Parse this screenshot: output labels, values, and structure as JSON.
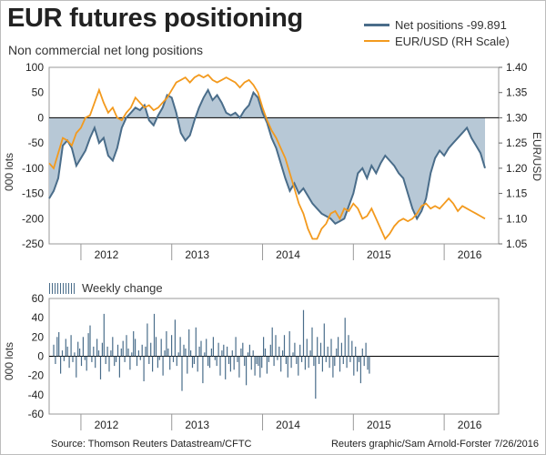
{
  "header": {
    "title": "EUR futures positioning",
    "subtitle": "Non commercial net long positions"
  },
  "legend": {
    "net_positions": "Net positions -99.891",
    "eurusd": "EUR/USD (RH Scale)",
    "weekly": "Weekly change"
  },
  "axes": {
    "top_left_label": "000 lots",
    "top_right_label": "EUR/USD",
    "bottom_left_label": "000 lots"
  },
  "footer": {
    "source": "Source: Thomson Reuters Datastream/CFTC",
    "credit": "Reuters graphic/Sam Arnold-Forster 7/26/2016"
  },
  "colors": {
    "net_line": "#4a6d8a",
    "net_fill": "#b7c8d6",
    "eurusd_line": "#f39a1e",
    "weekly_bar": "#4a6d8a"
  },
  "chart_data": [
    {
      "type": "area",
      "title": "EUR futures positioning",
      "subtitle": "Non commercial net long positions",
      "ylabel": "000 lots",
      "y2label": "EUR/USD",
      "xlim": [
        2011.65,
        2016.6
      ],
      "ylim": [
        -250,
        100
      ],
      "y2lim": [
        1.05,
        1.4
      ],
      "yticks": [
        100,
        50,
        0,
        -50,
        -100,
        -150,
        -200,
        -250
      ],
      "y2ticks": [
        "1.40",
        "1.35",
        "1.30",
        "1.25",
        "1.20",
        "1.15",
        "1.10",
        "1.05"
      ],
      "xticks": [
        {
          "label": "2012",
          "x": 2012.0
        },
        {
          "label": "2013",
          "x": 2013.0
        },
        {
          "label": "2014",
          "x": 2014.0
        },
        {
          "label": "2015",
          "x": 2015.0
        },
        {
          "label": "2016",
          "x": 2016.0
        }
      ],
      "series": [
        {
          "name": "Net positions -99.891",
          "axis": "left",
          "points": [
            [
              2011.65,
              -160
            ],
            [
              2011.7,
              -145
            ],
            [
              2011.75,
              -120
            ],
            [
              2011.8,
              -55
            ],
            [
              2011.85,
              -45
            ],
            [
              2011.9,
              -60
            ],
            [
              2011.95,
              -95
            ],
            [
              2012.0,
              -80
            ],
            [
              2012.05,
              -65
            ],
            [
              2012.1,
              -40
            ],
            [
              2012.15,
              -20
            ],
            [
              2012.2,
              -50
            ],
            [
              2012.25,
              -40
            ],
            [
              2012.3,
              -75
            ],
            [
              2012.35,
              -85
            ],
            [
              2012.4,
              -60
            ],
            [
              2012.45,
              -20
            ],
            [
              2012.5,
              0
            ],
            [
              2012.55,
              10
            ],
            [
              2012.6,
              20
            ],
            [
              2012.65,
              15
            ],
            [
              2012.7,
              25
            ],
            [
              2012.75,
              -5
            ],
            [
              2012.8,
              -15
            ],
            [
              2012.85,
              5
            ],
            [
              2012.9,
              20
            ],
            [
              2012.95,
              45
            ],
            [
              2013.0,
              40
            ],
            [
              2013.05,
              10
            ],
            [
              2013.1,
              -30
            ],
            [
              2013.15,
              -45
            ],
            [
              2013.2,
              -35
            ],
            [
              2013.25,
              -5
            ],
            [
              2013.3,
              20
            ],
            [
              2013.35,
              40
            ],
            [
              2013.4,
              55
            ],
            [
              2013.45,
              35
            ],
            [
              2013.5,
              45
            ],
            [
              2013.55,
              30
            ],
            [
              2013.6,
              10
            ],
            [
              2013.65,
              5
            ],
            [
              2013.7,
              10
            ],
            [
              2013.75,
              0
            ],
            [
              2013.8,
              15
            ],
            [
              2013.85,
              25
            ],
            [
              2013.9,
              50
            ],
            [
              2013.95,
              40
            ],
            [
              2014.0,
              10
            ],
            [
              2014.05,
              -10
            ],
            [
              2014.1,
              -40
            ],
            [
              2014.15,
              -60
            ],
            [
              2014.2,
              -90
            ],
            [
              2014.25,
              -120
            ],
            [
              2014.3,
              -145
            ],
            [
              2014.35,
              -130
            ],
            [
              2014.4,
              -150
            ],
            [
              2014.45,
              -140
            ],
            [
              2014.5,
              -155
            ],
            [
              2014.55,
              -170
            ],
            [
              2014.6,
              -180
            ],
            [
              2014.65,
              -190
            ],
            [
              2014.7,
              -195
            ],
            [
              2014.75,
              -200
            ],
            [
              2014.8,
              -210
            ],
            [
              2014.85,
              -205
            ],
            [
              2014.9,
              -200
            ],
            [
              2014.95,
              -175
            ],
            [
              2015.0,
              -150
            ],
            [
              2015.05,
              -110
            ],
            [
              2015.1,
              -100
            ],
            [
              2015.15,
              -120
            ],
            [
              2015.2,
              -95
            ],
            [
              2015.25,
              -110
            ],
            [
              2015.3,
              -90
            ],
            [
              2015.35,
              -75
            ],
            [
              2015.4,
              -85
            ],
            [
              2015.45,
              -95
            ],
            [
              2015.5,
              -110
            ],
            [
              2015.55,
              -120
            ],
            [
              2015.6,
              -150
            ],
            [
              2015.65,
              -180
            ],
            [
              2015.7,
              -200
            ],
            [
              2015.75,
              -185
            ],
            [
              2015.8,
              -160
            ],
            [
              2015.85,
              -110
            ],
            [
              2015.9,
              -80
            ],
            [
              2015.95,
              -65
            ],
            [
              2016.0,
              -75
            ],
            [
              2016.05,
              -60
            ],
            [
              2016.1,
              -50
            ],
            [
              2016.15,
              -40
            ],
            [
              2016.2,
              -30
            ],
            [
              2016.25,
              -20
            ],
            [
              2016.3,
              -40
            ],
            [
              2016.35,
              -55
            ],
            [
              2016.4,
              -70
            ],
            [
              2016.45,
              -99.891
            ]
          ]
        },
        {
          "name": "EUR/USD (RH Scale)",
          "axis": "right",
          "points": [
            [
              2011.65,
              1.21
            ],
            [
              2011.7,
              1.2
            ],
            [
              2011.75,
              1.23
            ],
            [
              2011.8,
              1.26
            ],
            [
              2011.85,
              1.255
            ],
            [
              2011.9,
              1.245
            ],
            [
              2011.95,
              1.27
            ],
            [
              2012.0,
              1.28
            ],
            [
              2012.05,
              1.3
            ],
            [
              2012.1,
              1.305
            ],
            [
              2012.15,
              1.33
            ],
            [
              2012.2,
              1.355
            ],
            [
              2012.25,
              1.33
            ],
            [
              2012.3,
              1.31
            ],
            [
              2012.35,
              1.32
            ],
            [
              2012.4,
              1.3
            ],
            [
              2012.45,
              1.295
            ],
            [
              2012.5,
              1.31
            ],
            [
              2012.55,
              1.32
            ],
            [
              2012.6,
              1.34
            ],
            [
              2012.65,
              1.33
            ],
            [
              2012.7,
              1.32
            ],
            [
              2012.75,
              1.325
            ],
            [
              2012.8,
              1.315
            ],
            [
              2012.85,
              1.32
            ],
            [
              2012.9,
              1.33
            ],
            [
              2012.95,
              1.34
            ],
            [
              2013.0,
              1.355
            ],
            [
              2013.05,
              1.37
            ],
            [
              2013.1,
              1.375
            ],
            [
              2013.15,
              1.38
            ],
            [
              2013.2,
              1.37
            ],
            [
              2013.25,
              1.38
            ],
            [
              2013.3,
              1.385
            ],
            [
              2013.35,
              1.38
            ],
            [
              2013.4,
              1.385
            ],
            [
              2013.45,
              1.375
            ],
            [
              2013.5,
              1.37
            ],
            [
              2013.55,
              1.375
            ],
            [
              2013.6,
              1.38
            ],
            [
              2013.65,
              1.375
            ],
            [
              2013.7,
              1.37
            ],
            [
              2013.75,
              1.36
            ],
            [
              2013.8,
              1.37
            ],
            [
              2013.85,
              1.375
            ],
            [
              2013.9,
              1.365
            ],
            [
              2013.95,
              1.35
            ],
            [
              2014.0,
              1.32
            ],
            [
              2014.05,
              1.295
            ],
            [
              2014.1,
              1.275
            ],
            [
              2014.15,
              1.26
            ],
            [
              2014.2,
              1.24
            ],
            [
              2014.25,
              1.22
            ],
            [
              2014.3,
              1.19
            ],
            [
              2014.35,
              1.16
            ],
            [
              2014.4,
              1.13
            ],
            [
              2014.45,
              1.11
            ],
            [
              2014.5,
              1.08
            ],
            [
              2014.55,
              1.06
            ],
            [
              2014.6,
              1.06
            ],
            [
              2014.65,
              1.08
            ],
            [
              2014.7,
              1.09
            ],
            [
              2014.75,
              1.11
            ],
            [
              2014.8,
              1.115
            ],
            [
              2014.85,
              1.1
            ],
            [
              2014.9,
              1.12
            ],
            [
              2014.95,
              1.115
            ],
            [
              2015.0,
              1.13
            ],
            [
              2015.05,
              1.12
            ],
            [
              2015.1,
              1.1
            ],
            [
              2015.15,
              1.105
            ],
            [
              2015.2,
              1.12
            ],
            [
              2015.25,
              1.1
            ],
            [
              2015.3,
              1.08
            ],
            [
              2015.35,
              1.06
            ],
            [
              2015.4,
              1.07
            ],
            [
              2015.45,
              1.085
            ],
            [
              2015.5,
              1.095
            ],
            [
              2015.55,
              1.1
            ],
            [
              2015.6,
              1.095
            ],
            [
              2015.65,
              1.1
            ],
            [
              2015.7,
              1.11
            ],
            [
              2015.75,
              1.125
            ],
            [
              2015.8,
              1.13
            ],
            [
              2015.85,
              1.12
            ],
            [
              2015.9,
              1.125
            ],
            [
              2015.95,
              1.12
            ],
            [
              2016.0,
              1.13
            ],
            [
              2016.05,
              1.14
            ],
            [
              2016.1,
              1.13
            ],
            [
              2016.15,
              1.115
            ],
            [
              2016.2,
              1.125
            ],
            [
              2016.25,
              1.12
            ],
            [
              2016.3,
              1.115
            ],
            [
              2016.35,
              1.11
            ],
            [
              2016.4,
              1.105
            ],
            [
              2016.45,
              1.1
            ]
          ]
        }
      ]
    },
    {
      "type": "bar",
      "title": "Weekly change",
      "ylabel": "000 lots",
      "xlim": [
        2011.65,
        2016.6
      ],
      "ylim": [
        -60,
        60
      ],
      "yticks": [
        60,
        40,
        20,
        0,
        -20,
        -40,
        -60
      ],
      "xticks": [
        {
          "label": "2012",
          "x": 2012.0
        },
        {
          "label": "2013",
          "x": 2013.0
        },
        {
          "label": "2014",
          "x": 2014.0
        },
        {
          "label": "2015",
          "x": 2015.0
        },
        {
          "label": "2016",
          "x": 2016.0
        }
      ],
      "x_start": 2011.7,
      "x_step": 0.0191,
      "values": [
        12,
        -8,
        20,
        25,
        -18,
        6,
        -5,
        18,
        10,
        -12,
        22,
        -6,
        4,
        -22,
        15,
        8,
        -10,
        20,
        -4,
        -15,
        24,
        32,
        -6,
        10,
        -12,
        18,
        6,
        -24,
        14,
        44,
        -8,
        10,
        -16,
        6,
        20,
        -10,
        -6,
        12,
        -22,
        8,
        16,
        -6,
        22,
        8,
        -14,
        4,
        26,
        18,
        -10,
        6,
        -4,
        12,
        -26,
        10,
        34,
        -8,
        14,
        -16,
        44,
        20,
        -12,
        -4,
        18,
        -20,
        6,
        26,
        8,
        -14,
        22,
        -6,
        38,
        -10,
        4,
        20,
        -36,
        12,
        8,
        -18,
        28,
        6,
        -12,
        -8,
        30,
        -16,
        10,
        16,
        -28,
        4,
        18,
        -10,
        -12,
        8,
        20,
        -4,
        -10,
        14,
        -20,
        6,
        12,
        -24,
        10,
        -8,
        -16,
        6,
        -14,
        20,
        -6,
        -22,
        8,
        14,
        -10,
        -30,
        4,
        12,
        -14,
        6,
        -20,
        -8,
        -10,
        -22,
        -12,
        20,
        8,
        -18,
        -6,
        12,
        30,
        -10,
        22,
        -4,
        10,
        -16,
        6,
        22,
        -8,
        -22,
        26,
        -12,
        4,
        14,
        -8,
        -20,
        12,
        -6,
        48,
        -14,
        18,
        -12,
        6,
        30,
        -10,
        -44,
        20,
        -8,
        14,
        -16,
        34,
        -6,
        10,
        -12,
        18,
        -22,
        -10,
        8,
        20,
        -16,
        14,
        -8,
        40,
        -12,
        22,
        -6,
        16,
        -20,
        10,
        -16,
        -6,
        -28,
        8,
        -10,
        14,
        -14,
        -18
      ]
    }
  ]
}
